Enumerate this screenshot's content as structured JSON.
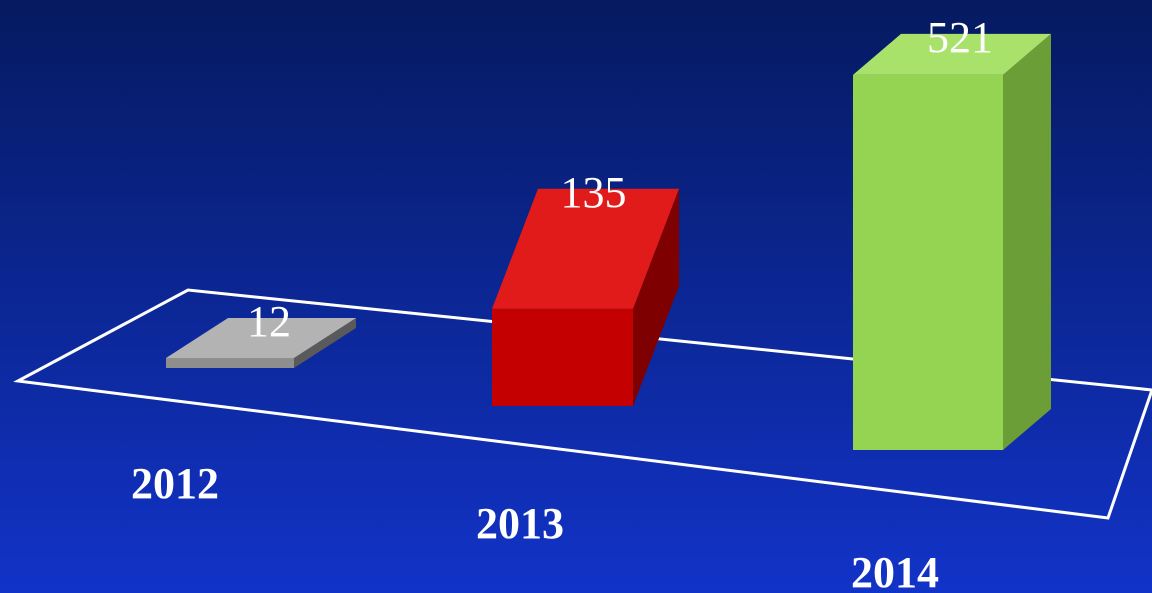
{
  "chart_data": {
    "type": "bar",
    "categories": [
      "2012",
      "2013",
      "2014"
    ],
    "values": [
      12,
      135,
      521
    ],
    "title": "",
    "xlabel": "",
    "ylabel": "",
    "ylim": [
      0,
      560
    ],
    "grid": false,
    "legend": "none",
    "data_labels": true,
    "colors": {
      "background_top": "#051a60",
      "background_bottom": "#1233c8",
      "floor_outline": "#ffffff",
      "label_text": "#ffffff",
      "bars": [
        {
          "front": "#8e8e8e",
          "top": "#b3b3b3",
          "side": "#5a5a5a"
        },
        {
          "front": "#c40000",
          "top": "#e11a1a",
          "side": "#7e0000"
        },
        {
          "front": "#94d452",
          "top": "#a8e26a",
          "side": "#6c9e38"
        }
      ]
    }
  }
}
